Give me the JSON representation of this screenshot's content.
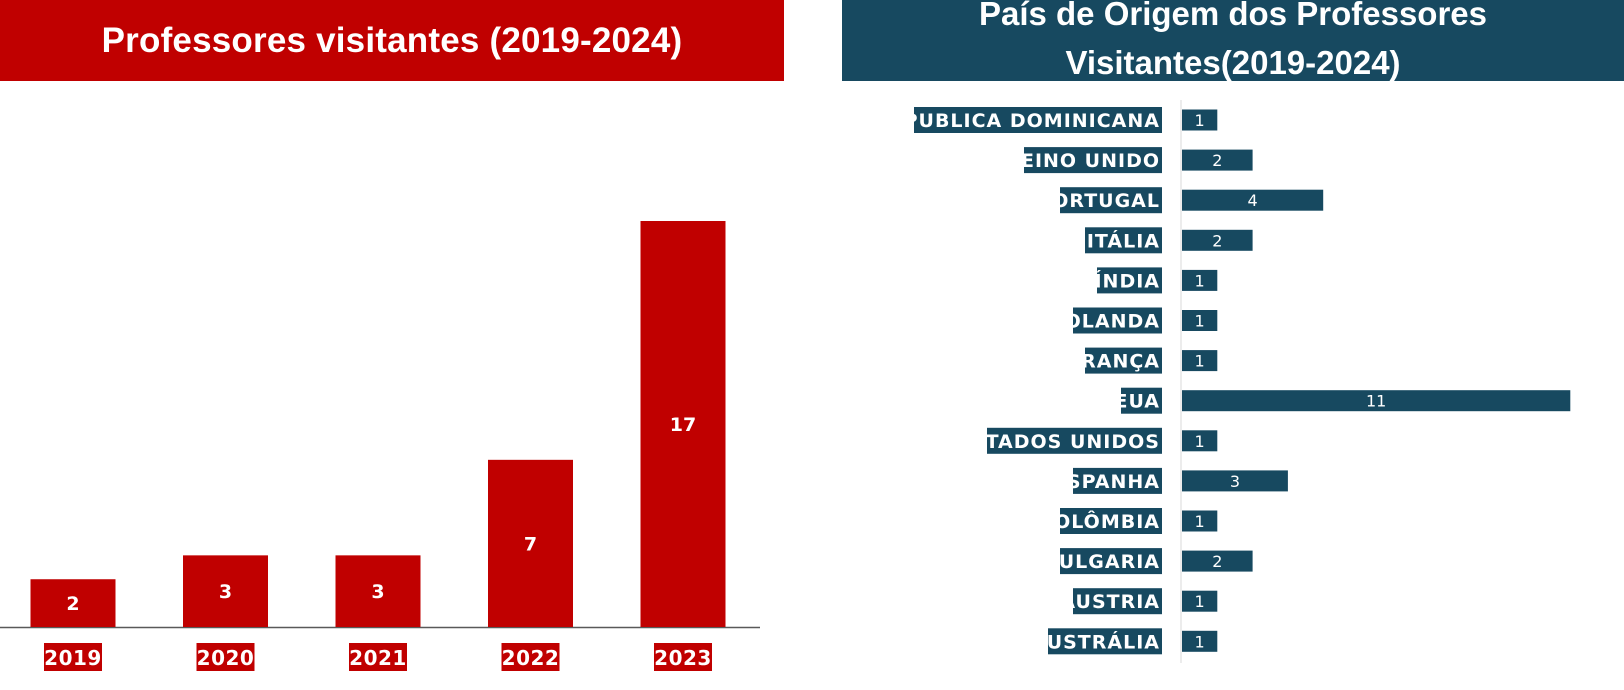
{
  "colors": {
    "red": "#c00000",
    "blue": "#174960",
    "axis": "#595959",
    "label_text": "#ffffff"
  },
  "chart_data": [
    {
      "type": "bar",
      "title": "Professores visitantes (2019-2024)",
      "categories": [
        "2019",
        "2020",
        "2021",
        "2022",
        "2023"
      ],
      "values": [
        2,
        3,
        3,
        7,
        17
      ],
      "ylim": [
        0,
        17
      ],
      "grid": false,
      "legend": "none",
      "color": "#c00000"
    },
    {
      "type": "bar",
      "orientation": "horizontal",
      "title": "País de Origem dos Professores Visitantes(2019-2024)",
      "categories": [
        "REPUBLICA DOMINICANA",
        "REINO UNIDO",
        "PORTUGAL",
        "ITÁLIA",
        "ÍNDIA",
        "HOLANDA",
        "FRANÇA",
        "EUA",
        "ESTADOS UNIDOS",
        "ESPANHA",
        "COLÔMBIA",
        "BULGARIA",
        "ÁUSTRIA",
        "AUSTRÁLIA"
      ],
      "values": [
        1,
        2,
        4,
        2,
        1,
        1,
        1,
        11,
        1,
        3,
        1,
        2,
        1,
        1
      ],
      "xlim": [
        0,
        11
      ],
      "grid": false,
      "legend": "none",
      "color": "#174960"
    }
  ]
}
